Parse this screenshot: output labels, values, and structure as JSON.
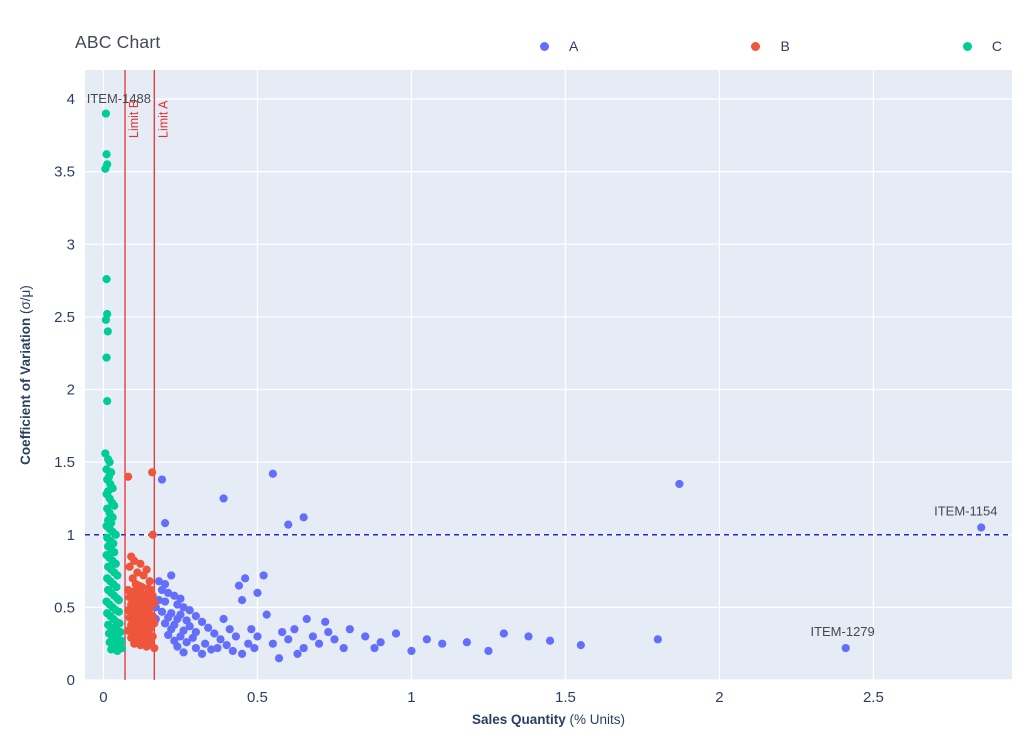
{
  "header": {
    "title": "ABC Chart"
  },
  "legend": [
    {
      "label": "A",
      "color": "#636EFA"
    },
    {
      "label": "B",
      "color": "#EF553B"
    },
    {
      "label": "C",
      "color": "#00CC96"
    }
  ],
  "chart_data": {
    "type": "scatter",
    "title": "ABC Chart",
    "xlabel_bold": "Sales Quantity",
    "xlabel_rest": " (% Units)",
    "ylabel_bold": "Coefficient of Variation",
    "ylabel_rest": " (σ/μ)",
    "xlim": [
      -0.06,
      2.95
    ],
    "ylim": [
      0,
      4.2
    ],
    "xticks": [
      0,
      0.5,
      1,
      1.5,
      2,
      2.5
    ],
    "yticks": [
      0,
      0.5,
      1,
      1.5,
      2,
      2.5,
      3,
      3.5,
      4
    ],
    "grid": true,
    "legend_position": "top",
    "plot_bg": "#E5ECF6",
    "grid_color": "#ffffff",
    "tick_color": "#2a3f5f",
    "axis_title_color": "#2a3f5f",
    "annotation_color": "#45494e",
    "vlines": [
      {
        "x": 0.07,
        "label": "Limit B",
        "color": "#e63131"
      },
      {
        "x": 0.165,
        "label": "Limit A",
        "color": "#e63131"
      }
    ],
    "hlines": [
      {
        "y": 1,
        "color": "#2424e8",
        "dash": true
      }
    ],
    "annotations": [
      {
        "text": "ITEM-1488",
        "x": 0.05,
        "y": 4.0
      },
      {
        "text": "ITEM-1154",
        "x": 2.8,
        "y": 1.16
      },
      {
        "text": "ITEM-1279",
        "x": 2.4,
        "y": 0.33
      }
    ],
    "series": [
      {
        "name": "A",
        "color": "#636EFA",
        "points": [
          [
            0.19,
            1.38
          ],
          [
            0.2,
            1.08
          ],
          [
            0.39,
            1.25
          ],
          [
            0.55,
            1.42
          ],
          [
            0.6,
            1.07
          ],
          [
            0.65,
            1.12
          ],
          [
            1.87,
            1.35
          ],
          [
            2.85,
            1.05
          ],
          [
            2.41,
            0.22
          ],
          [
            1.8,
            0.28
          ],
          [
            1.55,
            0.24
          ],
          [
            1.45,
            0.27
          ],
          [
            1.38,
            0.3
          ],
          [
            1.3,
            0.32
          ],
          [
            1.25,
            0.2
          ],
          [
            1.18,
            0.26
          ],
          [
            1.1,
            0.25
          ],
          [
            1.05,
            0.28
          ],
          [
            1.0,
            0.2
          ],
          [
            0.95,
            0.32
          ],
          [
            0.9,
            0.26
          ],
          [
            0.88,
            0.22
          ],
          [
            0.85,
            0.3
          ],
          [
            0.8,
            0.35
          ],
          [
            0.78,
            0.22
          ],
          [
            0.75,
            0.28
          ],
          [
            0.73,
            0.33
          ],
          [
            0.72,
            0.4
          ],
          [
            0.7,
            0.25
          ],
          [
            0.68,
            0.3
          ],
          [
            0.66,
            0.42
          ],
          [
            0.65,
            0.22
          ],
          [
            0.63,
            0.18
          ],
          [
            0.62,
            0.35
          ],
          [
            0.6,
            0.28
          ],
          [
            0.58,
            0.33
          ],
          [
            0.57,
            0.15
          ],
          [
            0.55,
            0.25
          ],
          [
            0.53,
            0.45
          ],
          [
            0.52,
            0.72
          ],
          [
            0.5,
            0.6
          ],
          [
            0.5,
            0.3
          ],
          [
            0.49,
            0.22
          ],
          [
            0.48,
            0.35
          ],
          [
            0.47,
            0.25
          ],
          [
            0.46,
            0.7
          ],
          [
            0.45,
            0.55
          ],
          [
            0.45,
            0.18
          ],
          [
            0.44,
            0.65
          ],
          [
            0.43,
            0.3
          ],
          [
            0.42,
            0.2
          ],
          [
            0.41,
            0.35
          ],
          [
            0.4,
            0.24
          ],
          [
            0.39,
            0.42
          ],
          [
            0.38,
            0.28
          ],
          [
            0.37,
            0.22
          ],
          [
            0.36,
            0.32
          ],
          [
            0.35,
            0.21
          ],
          [
            0.34,
            0.36
          ],
          [
            0.33,
            0.25
          ],
          [
            0.32,
            0.4
          ],
          [
            0.32,
            0.18
          ],
          [
            0.3,
            0.44
          ],
          [
            0.3,
            0.33
          ],
          [
            0.3,
            0.22
          ],
          [
            0.29,
            0.29
          ],
          [
            0.28,
            0.48
          ],
          [
            0.28,
            0.37
          ],
          [
            0.27,
            0.41
          ],
          [
            0.27,
            0.26
          ],
          [
            0.26,
            0.5
          ],
          [
            0.26,
            0.34
          ],
          [
            0.26,
            0.19
          ],
          [
            0.25,
            0.56
          ],
          [
            0.25,
            0.45
          ],
          [
            0.25,
            0.3
          ],
          [
            0.24,
            0.52
          ],
          [
            0.24,
            0.42
          ],
          [
            0.24,
            0.23
          ],
          [
            0.23,
            0.58
          ],
          [
            0.23,
            0.38
          ],
          [
            0.23,
            0.27
          ],
          [
            0.22,
            0.72
          ],
          [
            0.22,
            0.46
          ],
          [
            0.22,
            0.35
          ],
          [
            0.21,
            0.6
          ],
          [
            0.21,
            0.43
          ],
          [
            0.21,
            0.31
          ],
          [
            0.2,
            0.66
          ],
          [
            0.2,
            0.54
          ],
          [
            0.2,
            0.39
          ],
          [
            0.19,
            0.62
          ],
          [
            0.19,
            0.47
          ],
          [
            0.18,
            0.68
          ],
          [
            0.18,
            0.55
          ],
          [
            0.17,
            0.5
          ],
          [
            0.17,
            0.42
          ]
        ]
      },
      {
        "name": "B",
        "color": "#EF553B",
        "points": [
          [
            0.08,
            1.4
          ],
          [
            0.158,
            1.43
          ],
          [
            0.16,
            1.0
          ],
          [
            0.09,
            0.85
          ],
          [
            0.1,
            0.82
          ],
          [
            0.12,
            0.8
          ],
          [
            0.085,
            0.78
          ],
          [
            0.14,
            0.76
          ],
          [
            0.11,
            0.74
          ],
          [
            0.13,
            0.72
          ],
          [
            0.095,
            0.7
          ],
          [
            0.15,
            0.68
          ],
          [
            0.105,
            0.66
          ],
          [
            0.115,
            0.65
          ],
          [
            0.125,
            0.64
          ],
          [
            0.145,
            0.63
          ],
          [
            0.08,
            0.62
          ],
          [
            0.155,
            0.62
          ],
          [
            0.1,
            0.61
          ],
          [
            0.12,
            0.6
          ],
          [
            0.095,
            0.6
          ],
          [
            0.14,
            0.59
          ],
          [
            0.16,
            0.58
          ],
          [
            0.135,
            0.58
          ],
          [
            0.085,
            0.57
          ],
          [
            0.105,
            0.56
          ],
          [
            0.125,
            0.55
          ],
          [
            0.145,
            0.54
          ],
          [
            0.165,
            0.53
          ],
          [
            0.09,
            0.52
          ],
          [
            0.11,
            0.51
          ],
          [
            0.13,
            0.5
          ],
          [
            0.15,
            0.49
          ],
          [
            0.08,
            0.48
          ],
          [
            0.1,
            0.47
          ],
          [
            0.12,
            0.46
          ],
          [
            0.14,
            0.45
          ],
          [
            0.16,
            0.44
          ],
          [
            0.085,
            0.43
          ],
          [
            0.105,
            0.42
          ],
          [
            0.125,
            0.41
          ],
          [
            0.145,
            0.4
          ],
          [
            0.165,
            0.39
          ],
          [
            0.09,
            0.38
          ],
          [
            0.11,
            0.37
          ],
          [
            0.13,
            0.36
          ],
          [
            0.15,
            0.35
          ],
          [
            0.08,
            0.34
          ],
          [
            0.1,
            0.33
          ],
          [
            0.12,
            0.32
          ],
          [
            0.14,
            0.31
          ],
          [
            0.16,
            0.3
          ],
          [
            0.09,
            0.29
          ],
          [
            0.11,
            0.28
          ],
          [
            0.13,
            0.27
          ],
          [
            0.15,
            0.26
          ],
          [
            0.1,
            0.25
          ],
          [
            0.12,
            0.24
          ],
          [
            0.14,
            0.23
          ],
          [
            0.165,
            0.22
          ]
        ]
      },
      {
        "name": "C",
        "color": "#00CC96",
        "points": [
          [
            0.008,
            3.9
          ],
          [
            0.01,
            3.62
          ],
          [
            0.012,
            3.55
          ],
          [
            0.006,
            3.52
          ],
          [
            0.01,
            2.76
          ],
          [
            0.012,
            2.52
          ],
          [
            0.008,
            2.48
          ],
          [
            0.014,
            2.4
          ],
          [
            0.01,
            2.22
          ],
          [
            0.012,
            1.92
          ],
          [
            0.006,
            1.56
          ],
          [
            0.015,
            1.52
          ],
          [
            0.02,
            1.5
          ],
          [
            0.01,
            1.45
          ],
          [
            0.025,
            1.43
          ],
          [
            0.018,
            1.4
          ],
          [
            0.012,
            1.38
          ],
          [
            0.022,
            1.35
          ],
          [
            0.03,
            1.32
          ],
          [
            0.015,
            1.3
          ],
          [
            0.01,
            1.28
          ],
          [
            0.02,
            1.25
          ],
          [
            0.028,
            1.22
          ],
          [
            0.035,
            1.2
          ],
          [
            0.012,
            1.18
          ],
          [
            0.02,
            1.15
          ],
          [
            0.03,
            1.12
          ],
          [
            0.015,
            1.1
          ],
          [
            0.025,
            1.08
          ],
          [
            0.01,
            1.06
          ],
          [
            0.02,
            1.04
          ],
          [
            0.03,
            1.02
          ],
          [
            0.04,
            1.0
          ],
          [
            0.012,
            0.98
          ],
          [
            0.022,
            0.96
          ],
          [
            0.032,
            0.94
          ],
          [
            0.015,
            0.92
          ],
          [
            0.025,
            0.9
          ],
          [
            0.035,
            0.88
          ],
          [
            0.01,
            0.86
          ],
          [
            0.02,
            0.84
          ],
          [
            0.03,
            0.82
          ],
          [
            0.04,
            0.8
          ],
          [
            0.015,
            0.78
          ],
          [
            0.025,
            0.76
          ],
          [
            0.035,
            0.74
          ],
          [
            0.045,
            0.72
          ],
          [
            0.012,
            0.7
          ],
          [
            0.022,
            0.68
          ],
          [
            0.032,
            0.66
          ],
          [
            0.042,
            0.64
          ],
          [
            0.015,
            0.62
          ],
          [
            0.025,
            0.6
          ],
          [
            0.035,
            0.58
          ],
          [
            0.045,
            0.56
          ],
          [
            0.05,
            0.55
          ],
          [
            0.01,
            0.54
          ],
          [
            0.02,
            0.52
          ],
          [
            0.03,
            0.5
          ],
          [
            0.04,
            0.48
          ],
          [
            0.05,
            0.47
          ],
          [
            0.012,
            0.46
          ],
          [
            0.022,
            0.44
          ],
          [
            0.032,
            0.42
          ],
          [
            0.042,
            0.4
          ],
          [
            0.052,
            0.39
          ],
          [
            0.015,
            0.38
          ],
          [
            0.025,
            0.36
          ],
          [
            0.035,
            0.35
          ],
          [
            0.045,
            0.34
          ],
          [
            0.055,
            0.33
          ],
          [
            0.018,
            0.32
          ],
          [
            0.028,
            0.3
          ],
          [
            0.038,
            0.29
          ],
          [
            0.048,
            0.28
          ],
          [
            0.058,
            0.27
          ],
          [
            0.02,
            0.26
          ],
          [
            0.03,
            0.25
          ],
          [
            0.04,
            0.24
          ],
          [
            0.05,
            0.23
          ],
          [
            0.06,
            0.22
          ],
          [
            0.025,
            0.21
          ],
          [
            0.045,
            0.2
          ]
        ]
      }
    ]
  }
}
